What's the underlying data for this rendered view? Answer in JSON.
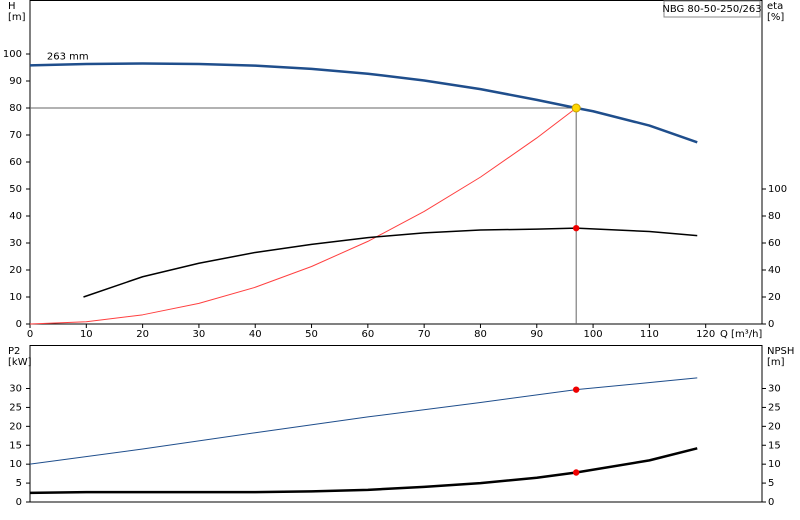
{
  "chart_data": [
    {
      "type": "line",
      "title": "NBG 80-50-250/263",
      "ylabel": [
        "H",
        "[m]"
      ],
      "y2label": [
        "eta",
        "[%]"
      ],
      "xlabel": "Q [m³/h]",
      "xlim": [
        0,
        130
      ],
      "xticks": [
        0,
        10,
        20,
        30,
        40,
        50,
        60,
        70,
        80,
        90,
        100,
        110,
        120
      ],
      "ylim": [
        0,
        120
      ],
      "yticks": [
        0,
        10,
        20,
        30,
        40,
        50,
        60,
        70,
        80,
        90,
        100
      ],
      "y2lim": [
        0,
        240
      ],
      "y2ticks": [
        0,
        20,
        40,
        60,
        80,
        100
      ],
      "annotations": [
        {
          "text": "263 mm",
          "x": 3,
          "y": 99
        }
      ],
      "series": [
        {
          "color": "#1f4e8c",
          "width": 2.5,
          "axis": "y",
          "x": [
            0,
            10,
            20,
            30,
            40,
            50,
            60,
            70,
            80,
            90,
            97,
            100,
            110,
            118.5
          ],
          "values": [
            95.8,
            96.3,
            96.5,
            96.3,
            95.7,
            94.5,
            92.7,
            90.2,
            87,
            83,
            80,
            78.8,
            73.5,
            67.3
          ]
        },
        {
          "color": "#ff4040",
          "width": 1,
          "axis": "y",
          "x": [
            0,
            10,
            20,
            30,
            40,
            50,
            60,
            70,
            80,
            90,
            97
          ],
          "values": [
            0,
            0.85,
            3.4,
            7.65,
            13.6,
            21.3,
            30.6,
            41.7,
            54.4,
            68.9,
            80
          ]
        },
        {
          "color": "#000000",
          "width": 1.5,
          "axis": "y2",
          "x": [
            9.5,
            20,
            30,
            40,
            50,
            60,
            70,
            80,
            90,
            97,
            110,
            118.5
          ],
          "values": [
            20,
            35,
            45,
            53,
            59,
            64,
            67.5,
            69.6,
            70.3,
            71,
            68.5,
            65.5
          ]
        }
      ],
      "points": [
        {
          "x": 97,
          "y": 80,
          "axis": "y",
          "color": "#ffd700",
          "guides": true
        },
        {
          "x": 97,
          "y": 71,
          "axis": "y2",
          "color": "#ee0000",
          "guides": false
        }
      ]
    },
    {
      "type": "line",
      "ylabel": [
        "P2",
        "[kW]"
      ],
      "y2label": [
        "NPSH",
        "[m]"
      ],
      "xlim": [
        0,
        130
      ],
      "ylim": [
        0,
        41.5
      ],
      "yticks": [
        0,
        5,
        10,
        15,
        20,
        25,
        30
      ],
      "y2lim": [
        0,
        41.5
      ],
      "y2ticks": [
        0,
        5,
        10,
        15,
        20,
        25,
        30
      ],
      "series": [
        {
          "color": "#1f4e8c",
          "width": 1,
          "axis": "y",
          "x": [
            0,
            20,
            40,
            60,
            80,
            97,
            118.5
          ],
          "values": [
            10,
            14,
            18.3,
            22.5,
            26.3,
            29.7,
            32.8
          ]
        },
        {
          "color": "#000000",
          "width": 2.5,
          "axis": "y2",
          "x": [
            0,
            10,
            40,
            50,
            60,
            70,
            80,
            90,
            97,
            110,
            118.5
          ],
          "values": [
            2.4,
            2.6,
            2.6,
            2.8,
            3.2,
            4,
            5,
            6.4,
            7.8,
            11,
            14.2
          ]
        }
      ],
      "points": [
        {
          "x": 97,
          "y": 29.7,
          "axis": "y",
          "color": "#ee0000",
          "guides": false
        },
        {
          "x": 97,
          "y": 7.8,
          "axis": "y2",
          "color": "#ee0000",
          "guides": false
        }
      ]
    }
  ]
}
